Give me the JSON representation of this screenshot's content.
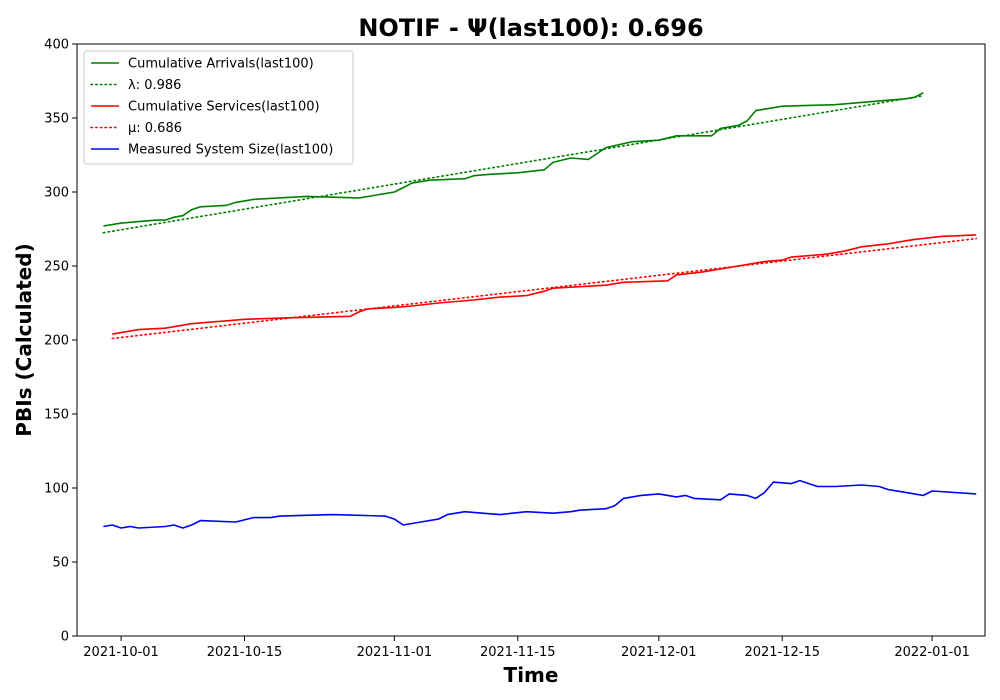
{
  "chart_data": {
    "type": "line",
    "title": "NOTIF -  Ψ(last100): 0.696",
    "xlabel": "Time",
    "ylabel": "PBIs (Calculated)",
    "xlim": [
      "2021-09-26",
      "2022-01-07"
    ],
    "ylim": [
      0,
      400
    ],
    "x_ticks": [
      "2021-10-01",
      "2021-10-15",
      "2021-11-01",
      "2021-11-15",
      "2021-12-01",
      "2021-12-15",
      "2022-01-01"
    ],
    "y_ticks": [
      0,
      50,
      100,
      150,
      200,
      250,
      300,
      350,
      400
    ],
    "grid": false,
    "legend_position": "upper-left",
    "series": [
      {
        "name": "Cumulative Arrivals(last100)",
        "color": "#008000",
        "style": "solid",
        "points": [
          [
            "2021-09-29",
            277
          ],
          [
            "2021-09-30",
            278
          ],
          [
            "2021-10-01",
            279
          ],
          [
            "2021-10-03",
            280
          ],
          [
            "2021-10-05",
            281
          ],
          [
            "2021-10-06",
            281
          ],
          [
            "2021-10-07",
            283
          ],
          [
            "2021-10-08",
            284
          ],
          [
            "2021-10-09",
            288
          ],
          [
            "2021-10-10",
            290
          ],
          [
            "2021-10-13",
            291
          ],
          [
            "2021-10-14",
            293
          ],
          [
            "2021-10-16",
            295
          ],
          [
            "2021-10-22",
            297
          ],
          [
            "2021-10-28",
            296
          ],
          [
            "2021-10-30",
            298
          ],
          [
            "2021-11-01",
            300
          ],
          [
            "2021-11-02",
            303
          ],
          [
            "2021-11-03",
            306
          ],
          [
            "2021-11-05",
            308
          ],
          [
            "2021-11-09",
            309
          ],
          [
            "2021-11-10",
            311
          ],
          [
            "2021-11-12",
            312
          ],
          [
            "2021-11-15",
            313
          ],
          [
            "2021-11-18",
            315
          ],
          [
            "2021-11-19",
            320
          ],
          [
            "2021-11-21",
            323
          ],
          [
            "2021-11-23",
            322
          ],
          [
            "2021-11-24",
            326
          ],
          [
            "2021-11-25",
            330
          ],
          [
            "2021-11-28",
            334
          ],
          [
            "2021-12-01",
            335
          ],
          [
            "2021-12-03",
            338
          ],
          [
            "2021-12-07",
            338
          ],
          [
            "2021-12-08",
            343
          ],
          [
            "2021-12-10",
            345
          ],
          [
            "2021-12-11",
            348
          ],
          [
            "2021-12-12",
            355
          ],
          [
            "2021-12-15",
            358
          ],
          [
            "2021-12-21",
            359
          ],
          [
            "2021-12-23",
            360
          ],
          [
            "2021-12-25",
            361
          ],
          [
            "2021-12-29",
            363
          ],
          [
            "2021-12-30",
            364
          ],
          [
            "2021-12-31",
            367
          ]
        ]
      },
      {
        "name": "λ: 0.986",
        "color": "#008000",
        "style": "dotted",
        "points": [
          [
            "2021-09-29",
            272.5
          ],
          [
            "2021-12-31",
            365
          ]
        ]
      },
      {
        "name": "Cumulative Services(last100)",
        "color": "#ff0000",
        "style": "solid",
        "points": [
          [
            "2021-09-30",
            204
          ],
          [
            "2021-10-01",
            205
          ],
          [
            "2021-10-03",
            207
          ],
          [
            "2021-10-06",
            208
          ],
          [
            "2021-10-08",
            210
          ],
          [
            "2021-10-09",
            211
          ],
          [
            "2021-10-11",
            212
          ],
          [
            "2021-10-13",
            213
          ],
          [
            "2021-10-15",
            214
          ],
          [
            "2021-10-20",
            215
          ],
          [
            "2021-10-27",
            216
          ],
          [
            "2021-10-28",
            219
          ],
          [
            "2021-10-29",
            221
          ],
          [
            "2021-11-01",
            222
          ],
          [
            "2021-11-03",
            223
          ],
          [
            "2021-11-06",
            225
          ],
          [
            "2021-11-10",
            227
          ],
          [
            "2021-11-13",
            229
          ],
          [
            "2021-11-16",
            230
          ],
          [
            "2021-11-18",
            233
          ],
          [
            "2021-11-19",
            235
          ],
          [
            "2021-11-22",
            236
          ],
          [
            "2021-11-25",
            237
          ],
          [
            "2021-11-27",
            239
          ],
          [
            "2021-12-02",
            240
          ],
          [
            "2021-12-03",
            244
          ],
          [
            "2021-12-06",
            246
          ],
          [
            "2021-12-08",
            248
          ],
          [
            "2021-12-11",
            251
          ],
          [
            "2021-12-13",
            253
          ],
          [
            "2021-12-15",
            254
          ],
          [
            "2021-12-16",
            256
          ],
          [
            "2021-12-20",
            258
          ],
          [
            "2021-12-22",
            260
          ],
          [
            "2021-12-24",
            263
          ],
          [
            "2021-12-27",
            265
          ],
          [
            "2021-12-29",
            267
          ],
          [
            "2021-12-30",
            268
          ],
          [
            "2022-01-02",
            270
          ],
          [
            "2022-01-06",
            271
          ]
        ]
      },
      {
        "name": "μ: 0.686",
        "color": "#ff0000",
        "style": "dotted",
        "points": [
          [
            "2021-09-30",
            201
          ],
          [
            "2022-01-06",
            268.5
          ]
        ]
      },
      {
        "name": "Measured System Size(last100)",
        "color": "#0000ff",
        "style": "solid",
        "points": [
          [
            "2021-09-29",
            74
          ],
          [
            "2021-09-30",
            75
          ],
          [
            "2021-10-01",
            73
          ],
          [
            "2021-10-02",
            74
          ],
          [
            "2021-10-03",
            73
          ],
          [
            "2021-10-06",
            74
          ],
          [
            "2021-10-07",
            75
          ],
          [
            "2021-10-08",
            73
          ],
          [
            "2021-10-09",
            75
          ],
          [
            "2021-10-10",
            78
          ],
          [
            "2021-10-14",
            77
          ],
          [
            "2021-10-16",
            80
          ],
          [
            "2021-10-18",
            80
          ],
          [
            "2021-10-19",
            81
          ],
          [
            "2021-10-25",
            82
          ],
          [
            "2021-10-31",
            81
          ],
          [
            "2021-11-01",
            79
          ],
          [
            "2021-11-02",
            75
          ],
          [
            "2021-11-04",
            77
          ],
          [
            "2021-11-06",
            79
          ],
          [
            "2021-11-07",
            82
          ],
          [
            "2021-11-09",
            84
          ],
          [
            "2021-11-11",
            83
          ],
          [
            "2021-11-13",
            82
          ],
          [
            "2021-11-16",
            84
          ],
          [
            "2021-11-19",
            83
          ],
          [
            "2021-11-21",
            84
          ],
          [
            "2021-11-22",
            85
          ],
          [
            "2021-11-25",
            86
          ],
          [
            "2021-11-26",
            88
          ],
          [
            "2021-11-27",
            93
          ],
          [
            "2021-11-29",
            95
          ],
          [
            "2021-12-01",
            96
          ],
          [
            "2021-12-03",
            94
          ],
          [
            "2021-12-04",
            95
          ],
          [
            "2021-12-05",
            93
          ],
          [
            "2021-12-08",
            92
          ],
          [
            "2021-12-09",
            96
          ],
          [
            "2021-12-11",
            95
          ],
          [
            "2021-12-12",
            93
          ],
          [
            "2021-12-13",
            97
          ],
          [
            "2021-12-14",
            104
          ],
          [
            "2021-12-16",
            103
          ],
          [
            "2021-12-17",
            105
          ],
          [
            "2021-12-19",
            101
          ],
          [
            "2021-12-21",
            101
          ],
          [
            "2021-12-24",
            102
          ],
          [
            "2021-12-26",
            101
          ],
          [
            "2021-12-27",
            99
          ],
          [
            "2021-12-29",
            97
          ],
          [
            "2021-12-31",
            95
          ],
          [
            "2022-01-01",
            98
          ],
          [
            "2022-01-06",
            96
          ]
        ]
      }
    ]
  }
}
